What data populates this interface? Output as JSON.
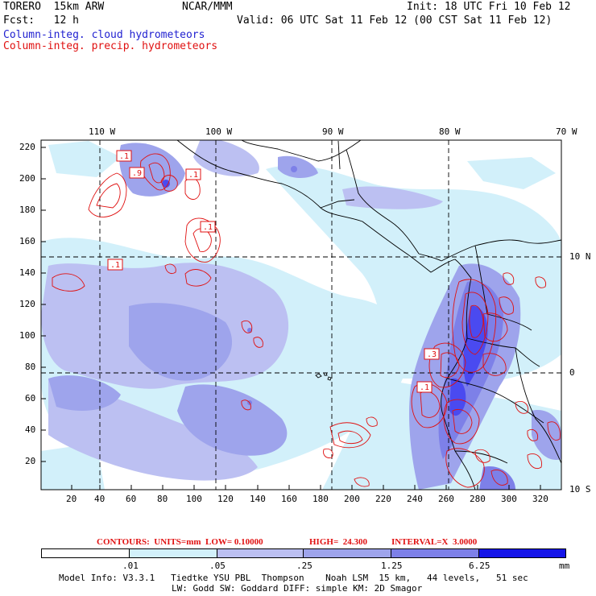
{
  "header": {
    "model": "TORERO  15km ARW",
    "org": "NCAR/MMM",
    "init": "Init: 18 UTC Fri 10 Feb 12",
    "fcst": "Fcst:   12 h",
    "valid": "Valid: 06 UTC Sat 11 Feb 12 (00 CST Sat 11 Feb 12)",
    "field_cloud": "Column-integ. cloud hydrometeors",
    "field_precip": "Column-integ. precip. hydrometeors"
  },
  "colors": {
    "cloud_label": "#1f1fd0",
    "precip": "#e01010",
    "shade_1": "#d2f0fa",
    "shade_2": "#bcc0f2",
    "shade_3": "#9ea4ec",
    "shade_4": "#7d80e8",
    "shade_5": "#4a4af0",
    "shade_6": "#1515e8"
  },
  "map": {
    "lon_labels": [
      "110 W",
      "100 W",
      "90 W",
      "80 W",
      "70 W"
    ],
    "lat_labels": [
      "10 N",
      "0",
      "10 S"
    ],
    "y_ticks": [
      "220",
      "200",
      "180",
      "160",
      "140",
      "120",
      "100",
      "80",
      "60",
      "40",
      "20"
    ],
    "x_ticks": [
      "20",
      "40",
      "60",
      "80",
      "100",
      "120",
      "140",
      "160",
      "180",
      "200",
      "220",
      "240",
      "260",
      "280",
      "300",
      "320"
    ],
    "contour_labels": [
      ".1",
      ".9",
      ".1",
      ".1",
      ".1",
      ".3",
      ".1"
    ]
  },
  "contours_info": {
    "units": "CONTOURS:  UNITS=mm  LOW= 0.10000",
    "high": "HIGH=  24.300",
    "interval": "INTERVAL=X  3.0000"
  },
  "colorbar": {
    "labels": [
      ".01",
      ".05",
      ".25",
      "1.25",
      "6.25"
    ],
    "unit": "mm"
  },
  "footer": {
    "line1": "Model Info: V3.3.1   Tiedtke YSU PBL  Thompson    Noah LSM  15 km,   44 levels,   51 sec",
    "line2": "LW: Godd SW: Goddard DIFF: simple KM: 2D Smagor"
  }
}
